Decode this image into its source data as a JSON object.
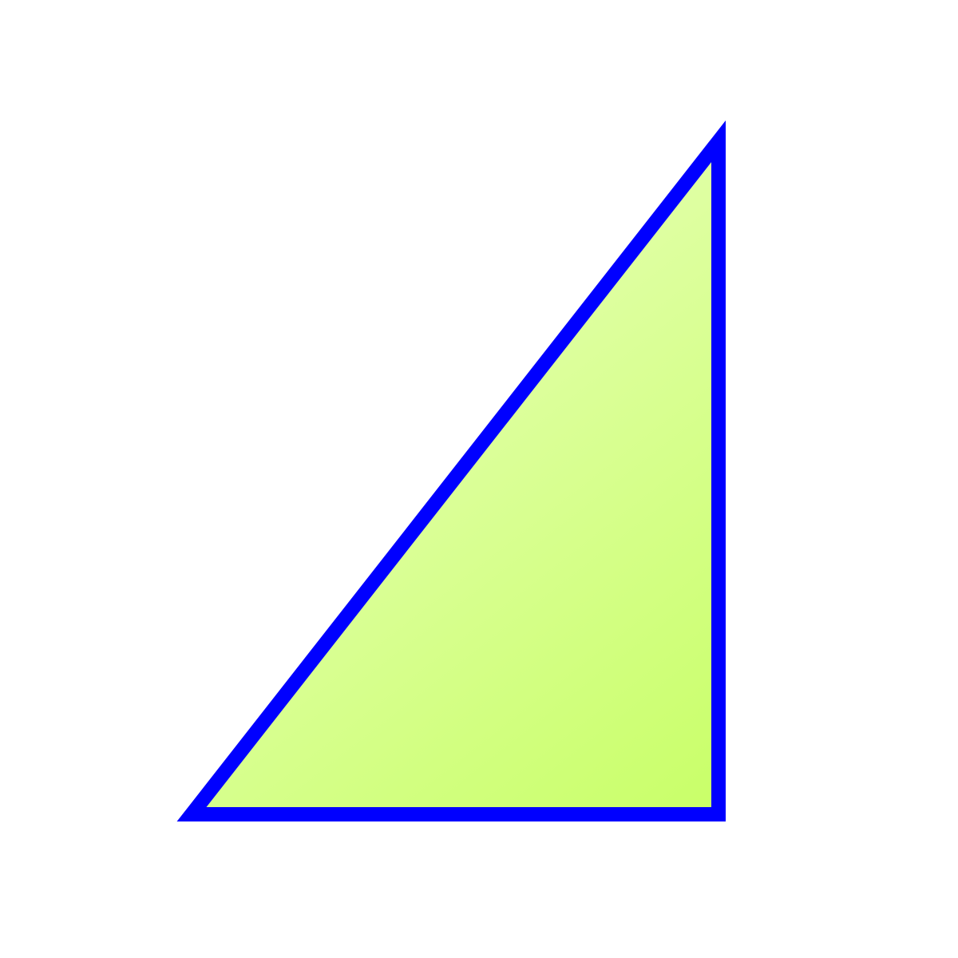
{
  "figure": {
    "shape": "right-triangle",
    "right_angle_corner": "bottom-right",
    "colors": {
      "background": "#ffffff",
      "stroke": "#0000ff",
      "fill_light": "#e4ffb0",
      "fill_dark": "#c8ff66"
    }
  }
}
